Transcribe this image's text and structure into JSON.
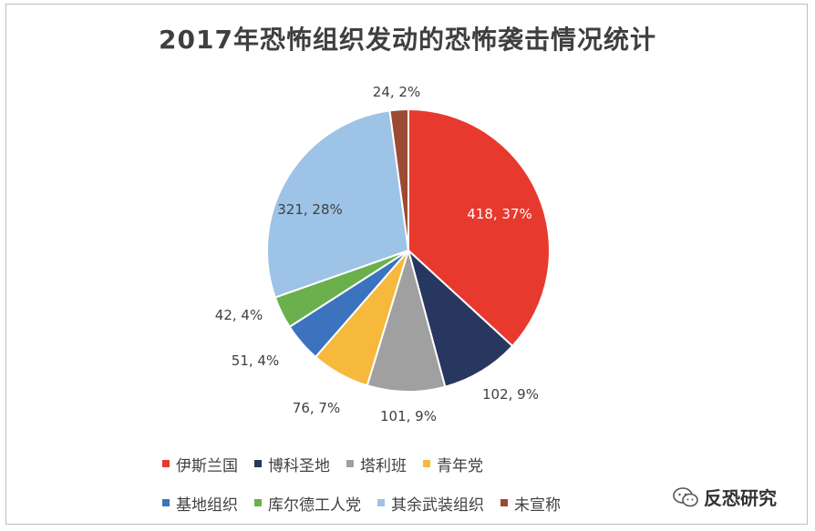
{
  "chart_data": {
    "type": "pie",
    "title": "2017年恐怖组织发动的恐怖袭击情况统计",
    "series": [
      {
        "name": "伊斯兰国",
        "value": 418,
        "percent": "37%",
        "color": "#e8392e"
      },
      {
        "name": "博科圣地",
        "value": 102,
        "percent": "9%",
        "color": "#27375f"
      },
      {
        "name": "塔利班",
        "value": 101,
        "percent": "9%",
        "color": "#a0a0a0"
      },
      {
        "name": "青年党",
        "value": 76,
        "percent": "7%",
        "color": "#f6b93b"
      },
      {
        "name": "基地组织",
        "value": 51,
        "percent": "4%",
        "color": "#3c73bf"
      },
      {
        "name": "库尔德工人党",
        "value": 42,
        "percent": "4%",
        "color": "#6ab04c"
      },
      {
        "name": "其余武装组织",
        "value": 321,
        "percent": "28%",
        "color": "#9dc3e6"
      },
      {
        "name": "未宣称",
        "value": 24,
        "percent": "2%",
        "color": "#9b4b32"
      }
    ],
    "legend_position": "bottom"
  },
  "watermark": {
    "text": "反恐研究",
    "icon": "wechat-icon"
  }
}
